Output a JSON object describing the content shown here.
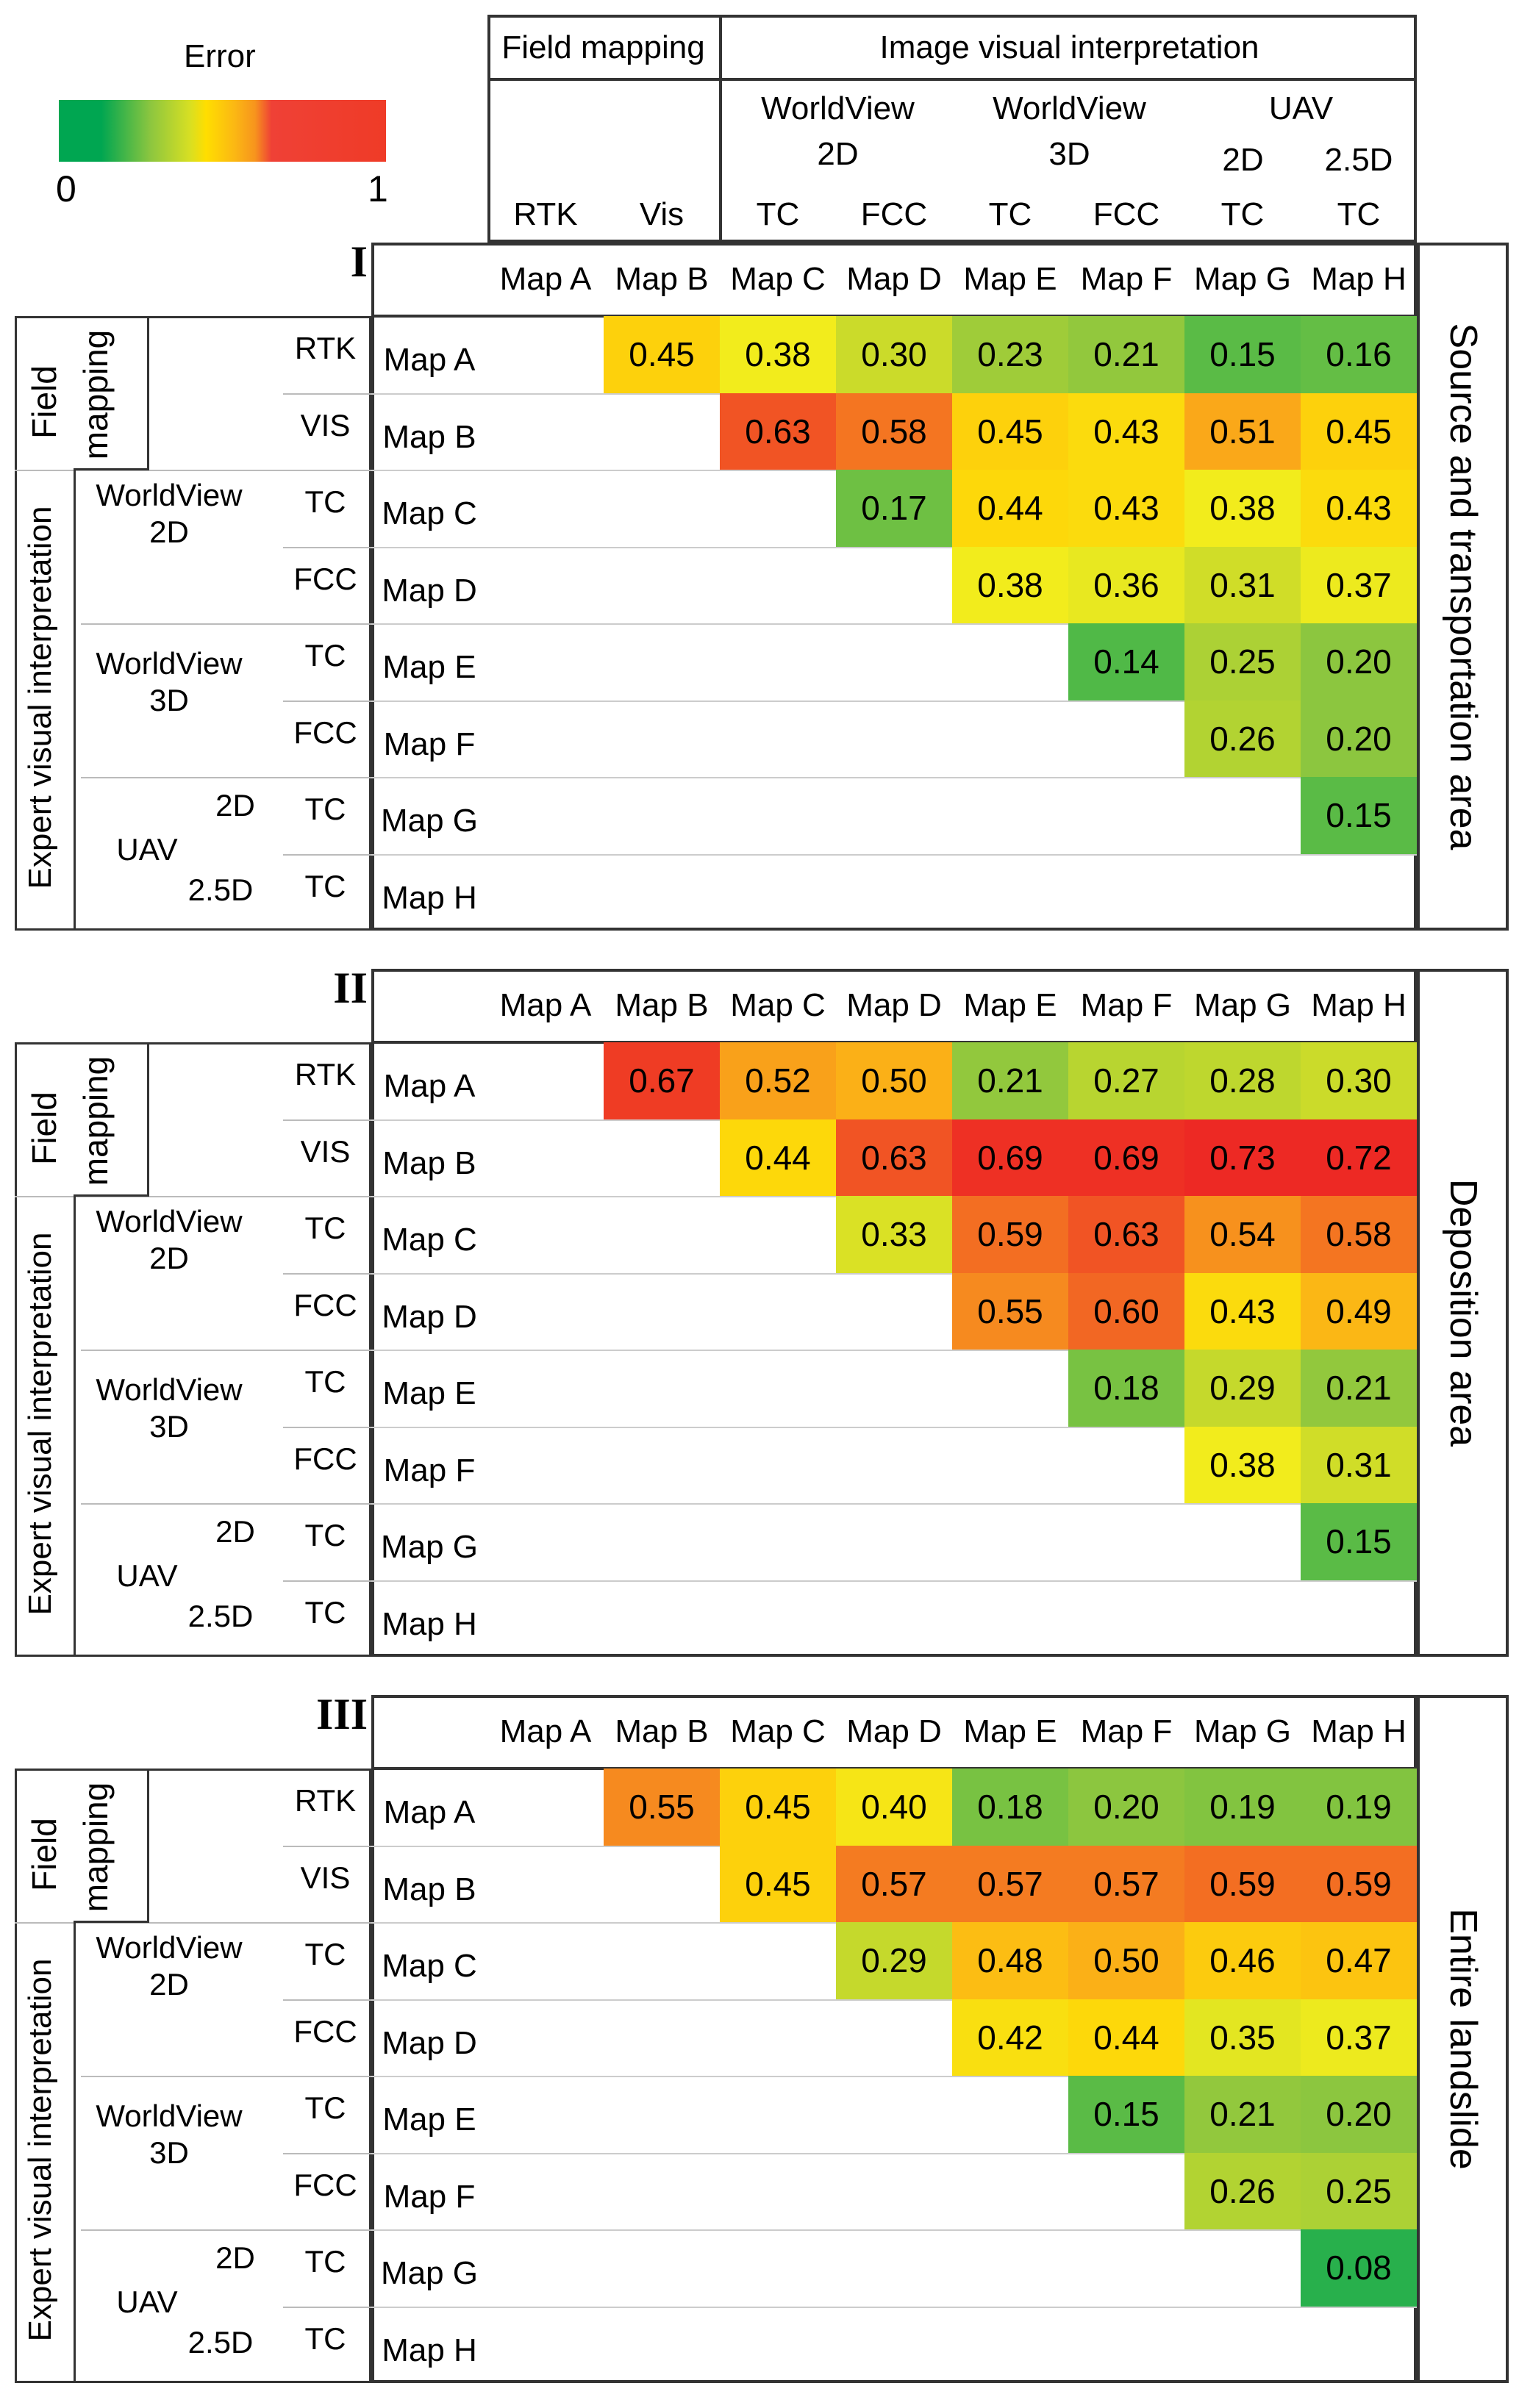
{
  "legend": {
    "title": "Error",
    "min_label": "0",
    "max_label": "1",
    "min": 0,
    "max": 1,
    "colors": [
      "#00a651",
      "#8cc63f",
      "#ffde00",
      "#f7941d",
      "#ef3b27"
    ]
  },
  "column_header": {
    "group1": "Field mapping",
    "group2": "Image visual interpretation",
    "sub_worldview2d": [
      "WorldView",
      "2D"
    ],
    "sub_worldview3d": [
      "WorldView",
      "3D"
    ],
    "sub_uav": "UAV",
    "sub_uav_2d": "2D",
    "sub_uav_25d": "2.5D",
    "methods": [
      "RTK",
      "Vis",
      "TC",
      "FCC",
      "TC",
      "FCC",
      "TC",
      "TC"
    ]
  },
  "row_header": {
    "field_mapping": "Field mapping",
    "field": "Field",
    "mapping": "mapping",
    "expert": "Expert visual interpretation",
    "worldview": "WorldView",
    "d2": "2D",
    "d3": "3D",
    "uav": "UAV",
    "d25": "2.5D",
    "methods": [
      "RTK",
      "VIS",
      "TC",
      "FCC",
      "TC",
      "FCC",
      "TC",
      "TC"
    ]
  },
  "chart_data": [
    {
      "type": "heatmap",
      "panel": "I",
      "title": "Source and transportation area",
      "categories": [
        "Map A",
        "Map B",
        "Map C",
        "Map D",
        "Map E",
        "Map F",
        "Map G",
        "Map H"
      ],
      "colorbar": {
        "label": "Error",
        "range": [
          0,
          1
        ]
      },
      "values": [
        [
          null,
          0.45,
          0.38,
          0.3,
          0.23,
          0.21,
          0.15,
          0.16
        ],
        [
          null,
          null,
          0.63,
          0.58,
          0.45,
          0.43,
          0.51,
          0.45
        ],
        [
          null,
          null,
          null,
          0.17,
          0.44,
          0.43,
          0.38,
          0.43
        ],
        [
          null,
          null,
          null,
          null,
          0.38,
          0.36,
          0.31,
          0.37
        ],
        [
          null,
          null,
          null,
          null,
          null,
          0.14,
          0.25,
          0.2
        ],
        [
          null,
          null,
          null,
          null,
          null,
          null,
          0.26,
          0.2
        ],
        [
          null,
          null,
          null,
          null,
          null,
          null,
          null,
          0.15
        ],
        [
          null,
          null,
          null,
          null,
          null,
          null,
          null,
          null
        ]
      ]
    },
    {
      "type": "heatmap",
      "panel": "II",
      "title": "Deposition area",
      "categories": [
        "Map A",
        "Map B",
        "Map C",
        "Map D",
        "Map E",
        "Map F",
        "Map G",
        "Map H"
      ],
      "colorbar": {
        "label": "Error",
        "range": [
          0,
          1
        ]
      },
      "values": [
        [
          null,
          0.67,
          0.52,
          0.5,
          0.21,
          0.27,
          0.28,
          0.3
        ],
        [
          null,
          null,
          0.44,
          0.63,
          0.69,
          0.69,
          0.73,
          0.72
        ],
        [
          null,
          null,
          null,
          0.33,
          0.59,
          0.63,
          0.54,
          0.58
        ],
        [
          null,
          null,
          null,
          null,
          0.55,
          0.6,
          0.43,
          0.49
        ],
        [
          null,
          null,
          null,
          null,
          null,
          0.18,
          0.29,
          0.21
        ],
        [
          null,
          null,
          null,
          null,
          null,
          null,
          0.38,
          0.31
        ],
        [
          null,
          null,
          null,
          null,
          null,
          null,
          null,
          0.15
        ],
        [
          null,
          null,
          null,
          null,
          null,
          null,
          null,
          null
        ]
      ]
    },
    {
      "type": "heatmap",
      "panel": "III",
      "title": "Entire landslide",
      "categories": [
        "Map A",
        "Map B",
        "Map C",
        "Map D",
        "Map E",
        "Map F",
        "Map G",
        "Map H"
      ],
      "colorbar": {
        "label": "Error",
        "range": [
          0,
          1
        ]
      },
      "values": [
        [
          null,
          0.55,
          0.45,
          0.4,
          0.18,
          0.2,
          0.19,
          0.19
        ],
        [
          null,
          null,
          0.45,
          0.57,
          0.57,
          0.57,
          0.59,
          0.59
        ],
        [
          null,
          null,
          null,
          0.29,
          0.48,
          0.5,
          0.46,
          0.47
        ],
        [
          null,
          null,
          null,
          null,
          0.42,
          0.44,
          0.35,
          0.37
        ],
        [
          null,
          null,
          null,
          null,
          null,
          0.15,
          0.21,
          0.2
        ],
        [
          null,
          null,
          null,
          null,
          null,
          null,
          0.26,
          0.25
        ],
        [
          null,
          null,
          null,
          null,
          null,
          null,
          null,
          0.08
        ],
        [
          null,
          null,
          null,
          null,
          null,
          null,
          null,
          null
        ]
      ]
    }
  ]
}
